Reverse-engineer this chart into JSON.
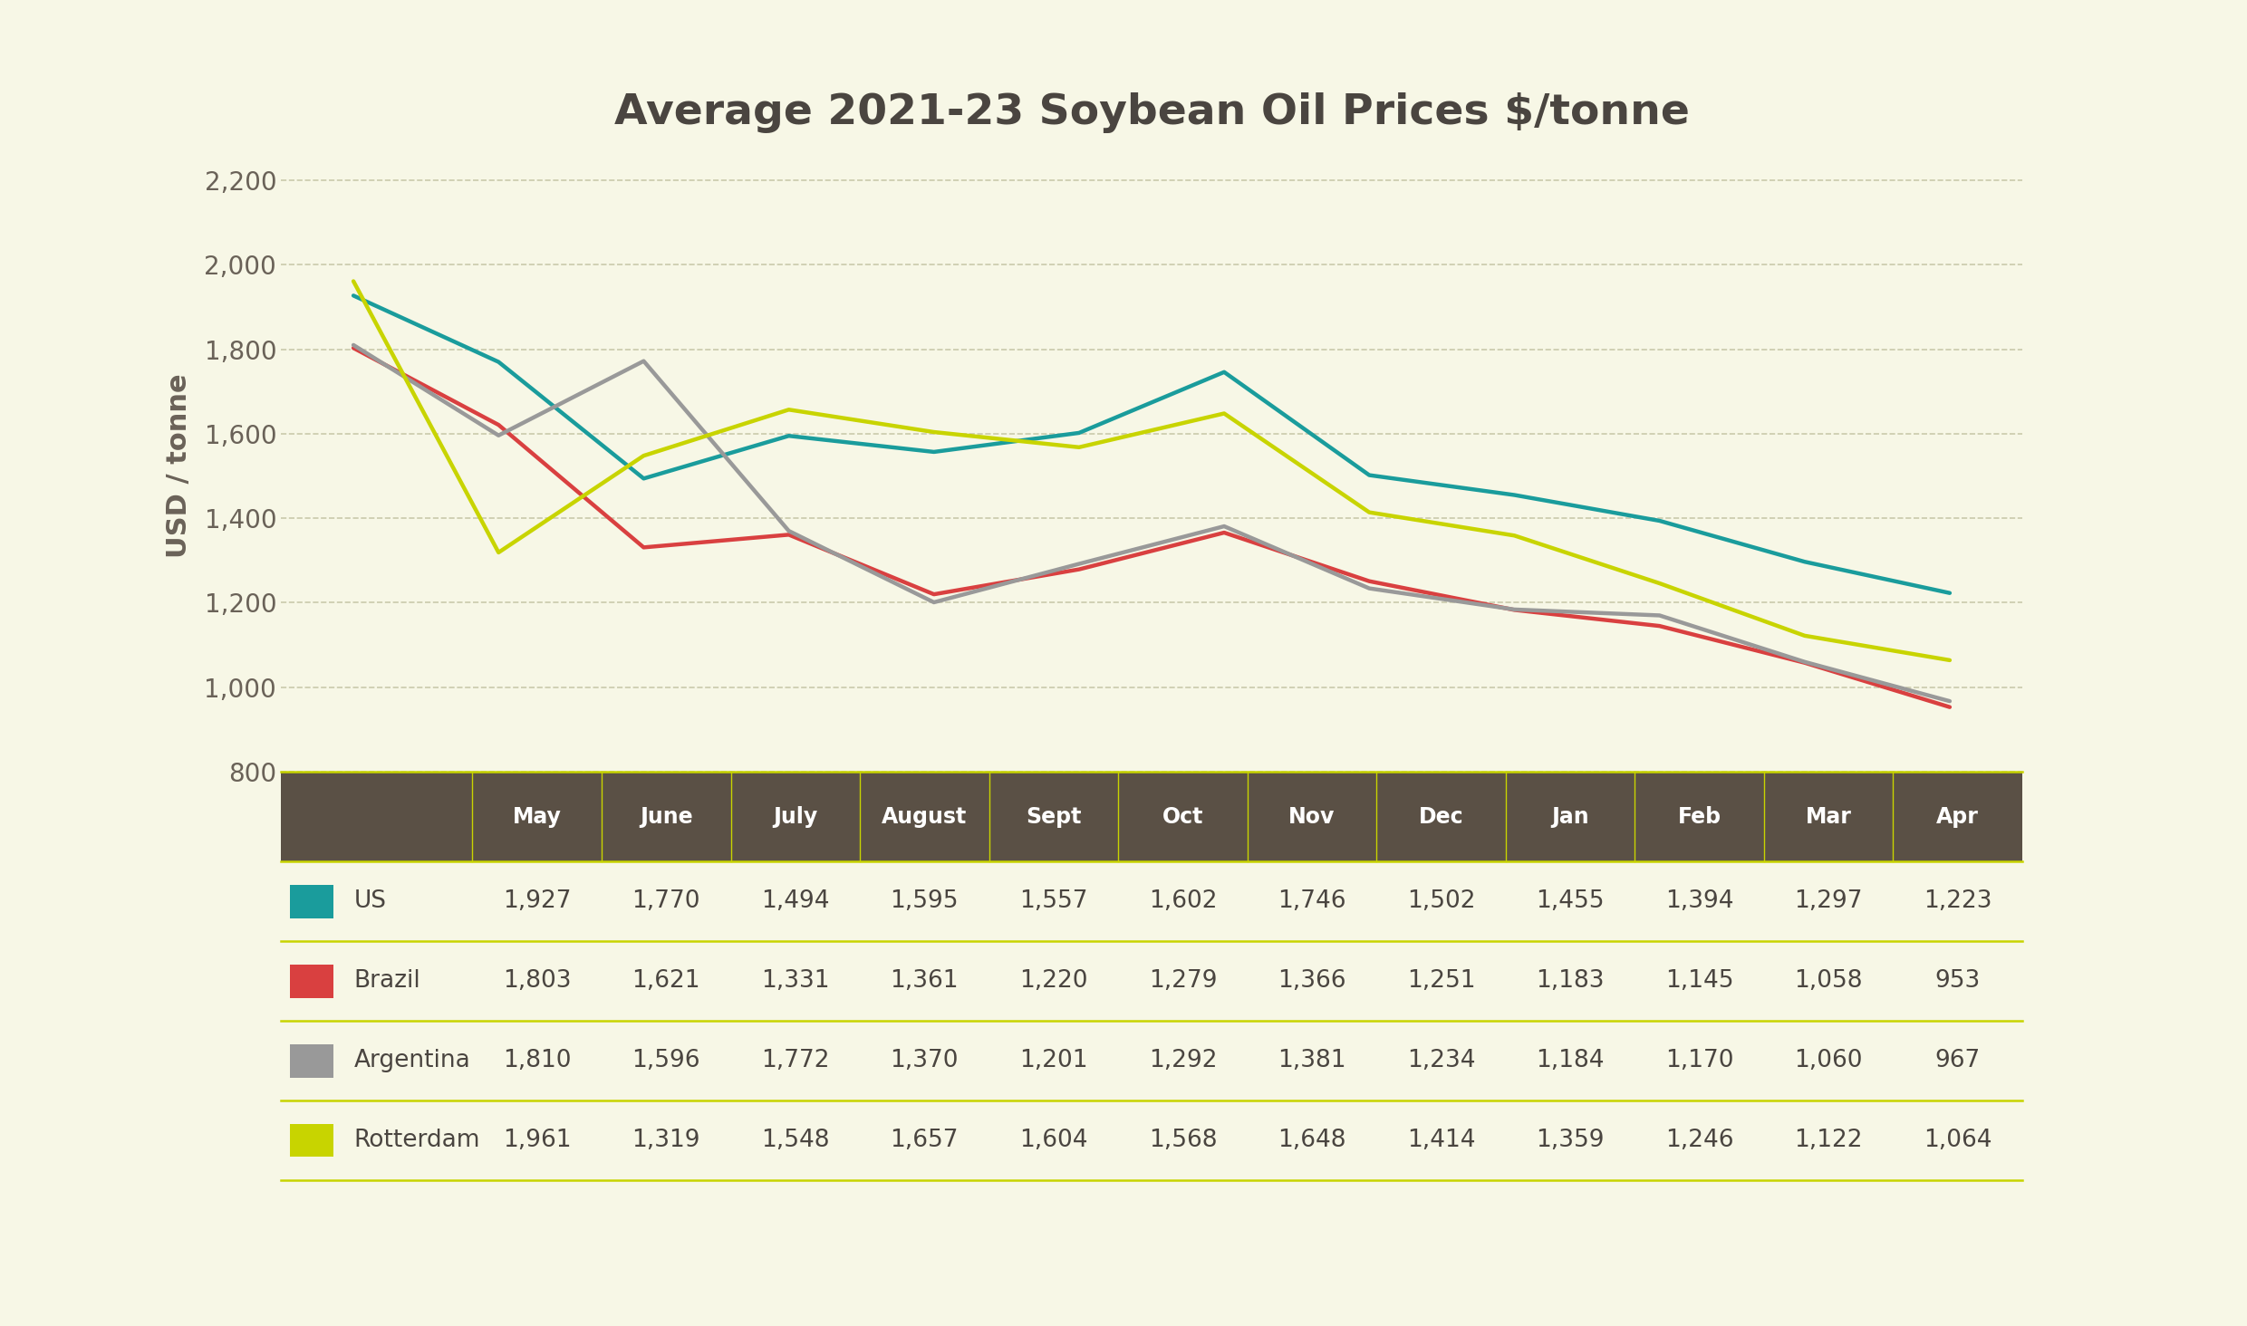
{
  "title": "Average 2021-23 Soybean Oil Prices $/tonne",
  "ylabel": "USD / tonne",
  "background_color": "#f7f7e6",
  "months": [
    "May",
    "June",
    "July",
    "August",
    "Sept",
    "Oct",
    "Nov",
    "Dec",
    "Jan",
    "Feb",
    "Mar",
    "Apr"
  ],
  "series": {
    "US": [
      1927,
      1770,
      1494,
      1595,
      1557,
      1602,
      1746,
      1502,
      1455,
      1394,
      1297,
      1223
    ],
    "Brazil": [
      1803,
      1621,
      1331,
      1361,
      1220,
      1279,
      1366,
      1251,
      1183,
      1145,
      1058,
      953
    ],
    "Argentina": [
      1810,
      1596,
      1772,
      1370,
      1201,
      1292,
      1381,
      1234,
      1184,
      1170,
      1060,
      967
    ],
    "Rotterdam": [
      1961,
      1319,
      1548,
      1657,
      1604,
      1568,
      1648,
      1414,
      1359,
      1246,
      1122,
      1064
    ]
  },
  "colors": {
    "US": "#1a9c9c",
    "Brazil": "#d94040",
    "Argentina": "#999999",
    "Rotterdam": "#c8d400"
  },
  "ylim": [
    800,
    2250
  ],
  "yticks": [
    800,
    1000,
    1200,
    1400,
    1600,
    1800,
    2000,
    2200
  ],
  "table_header_color": "#5a5045",
  "table_text_color": "#4a4540",
  "title_color": "#4a4540",
  "ylabel_color": "#6a6258",
  "grid_color": "#c8c8a8",
  "separator_color": "#c8d400",
  "line_width": 3.2
}
